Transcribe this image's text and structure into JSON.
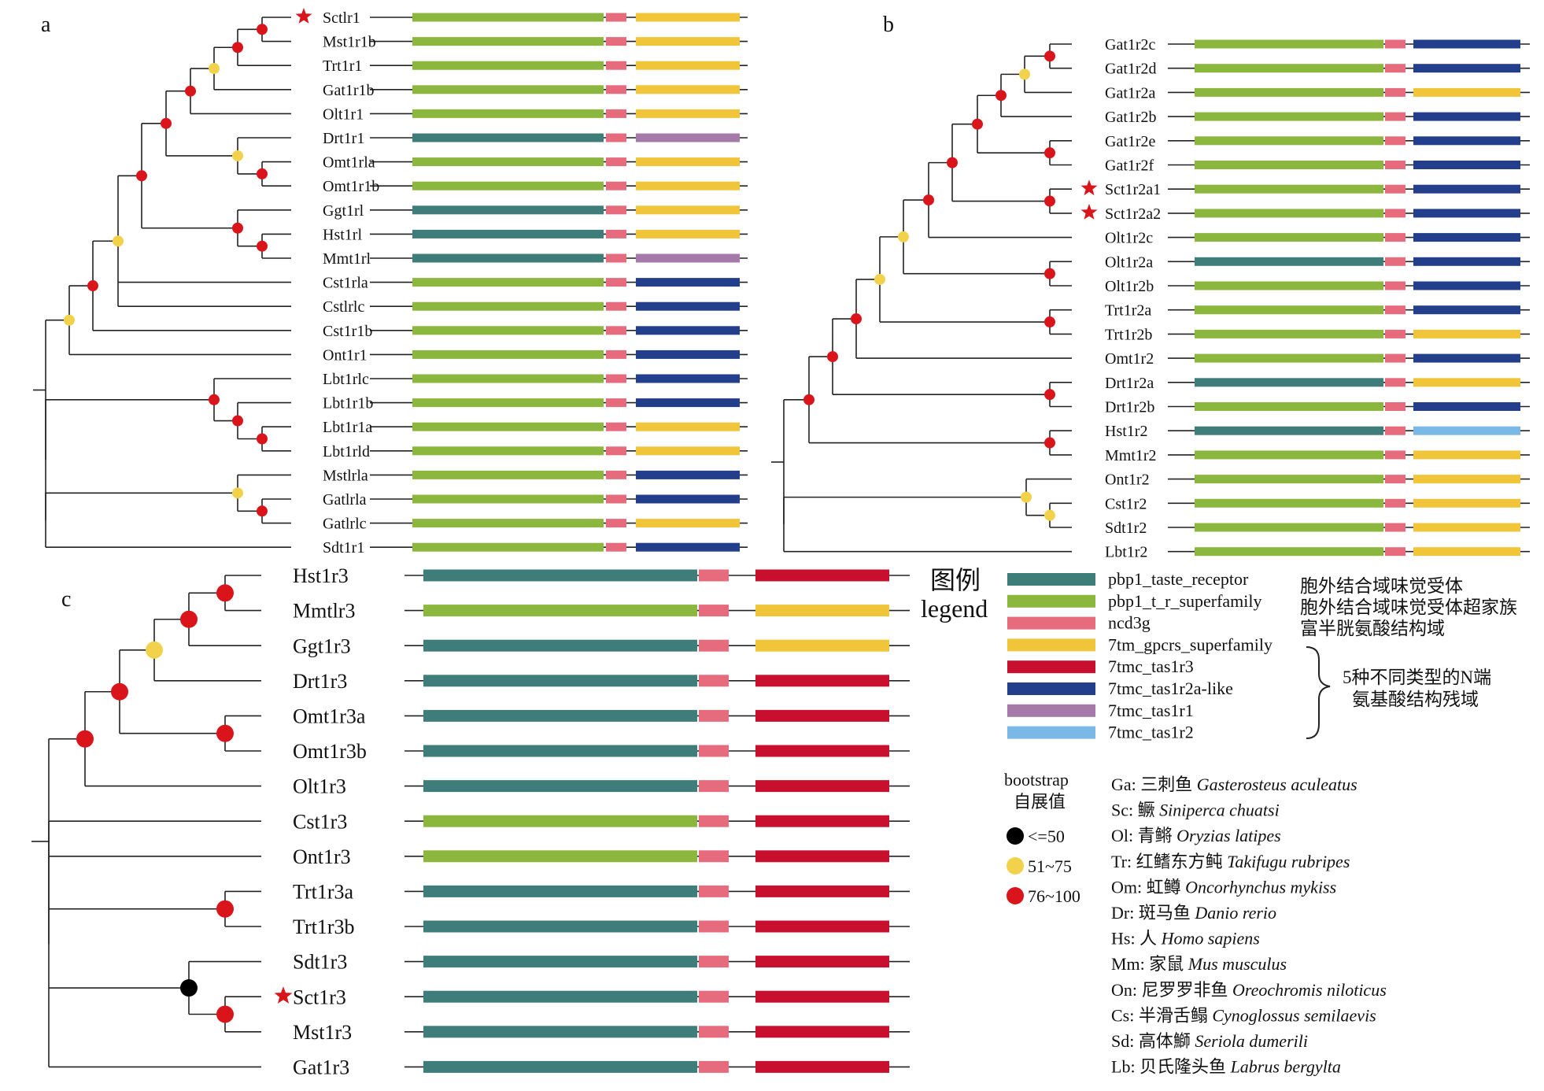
{
  "colors": {
    "teal": "#3f7d7b",
    "green": "#8cb73e",
    "pink": "#e56b7d",
    "yellow": "#f0c53a",
    "red": "#c8102e",
    "navy": "#233f8c",
    "purple": "#a57aa9",
    "lightblue": "#7ab8e6",
    "node_black": "#000000",
    "node_yellow": "#f2d24b",
    "node_red": "#d9141b",
    "star": "#d9141b"
  },
  "panel_a": {
    "letter": "a",
    "labels": [
      "Sctlr1",
      "Mst1r1b",
      "Trt1r1",
      "Gat1r1b",
      "Olt1r1",
      "Drt1r1",
      "Omt1rla",
      "Omt1r1b",
      "Ggt1rl",
      "Hst1rl",
      "Mmt1rl",
      "Cst1rla",
      "Cstlrlc",
      "Cst1r1b",
      "Ont1r1",
      "Lbt1rlc",
      "Lbt1r1b",
      "Lbt1r1a",
      "Lbt1rld",
      "Mstlrla",
      "Gatlrla",
      "Gatlrlc",
      "Sdt1r1"
    ],
    "first": [
      "green",
      "green",
      "green",
      "green",
      "green",
      "teal",
      "green",
      "green",
      "teal",
      "teal",
      "teal",
      "green",
      "green",
      "green",
      "green",
      "green",
      "green",
      "green",
      "green",
      "green",
      "green",
      "green",
      "green"
    ],
    "last": [
      "yellow",
      "yellow",
      "yellow",
      "yellow",
      "yellow",
      "purple",
      "yellow",
      "yellow",
      "yellow",
      "yellow",
      "purple",
      "navy",
      "navy",
      "navy",
      "navy",
      "navy",
      "navy",
      "yellow",
      "yellow",
      "navy",
      "navy",
      "yellow",
      "navy"
    ],
    "starred": [
      0
    ]
  },
  "panel_b": {
    "letter": "b",
    "labels": [
      "Gat1r2c",
      "Gat1r2d",
      "Gat1r2a",
      "Gat1r2b",
      "Gat1r2e",
      "Gat1r2f",
      "Sct1r2a1",
      "Sct1r2a2",
      "Olt1r2c",
      "Olt1r2a",
      "Olt1r2b",
      "Trt1r2a",
      "Trt1r2b",
      "Omt1r2",
      "Drt1r2a",
      "Drt1r2b",
      "Hst1r2",
      "Mmt1r2",
      "Ont1r2",
      "Cst1r2",
      "Sdt1r2",
      "Lbt1r2"
    ],
    "first": [
      "green",
      "green",
      "green",
      "green",
      "green",
      "green",
      "green",
      "green",
      "green",
      "teal",
      "green",
      "green",
      "green",
      "green",
      "teal",
      "green",
      "teal",
      "green",
      "green",
      "green",
      "green",
      "green"
    ],
    "last": [
      "navy",
      "navy",
      "yellow",
      "navy",
      "navy",
      "navy",
      "navy",
      "navy",
      "navy",
      "navy",
      "navy",
      "navy",
      "yellow",
      "navy",
      "yellow",
      "navy",
      "lightblue",
      "yellow",
      "yellow",
      "yellow",
      "yellow",
      "yellow"
    ],
    "starred": [
      6,
      7
    ]
  },
  "panel_c": {
    "letter": "c",
    "labels": [
      "Hst1r3",
      "Mmtlr3",
      "Ggt1r3",
      "Drt1r3",
      "Omt1r3a",
      "Omt1r3b",
      "Olt1r3",
      "Cst1r3",
      "Ont1r3",
      "Trt1r3a",
      "Trt1r3b",
      "Sdt1r3",
      "Sct1r3",
      "Mst1r3",
      "Gat1r3"
    ],
    "first": [
      "teal",
      "green",
      "teal",
      "teal",
      "teal",
      "teal",
      "teal",
      "green",
      "green",
      "teal",
      "teal",
      "teal",
      "teal",
      "teal",
      "teal"
    ],
    "last": [
      "red",
      "yellow",
      "yellow",
      "red",
      "red",
      "red",
      "red",
      "red",
      "red",
      "red",
      "red",
      "red",
      "red",
      "red",
      "red"
    ],
    "starred": [
      12
    ]
  },
  "legend": {
    "title_cn": "图例",
    "title_en": "legend",
    "domains": [
      {
        "color": "teal",
        "label": "pbp1_taste_receptor"
      },
      {
        "color": "green",
        "label": "pbp1_t_r_superfamily"
      },
      {
        "color": "pink",
        "label": "ncd3g"
      },
      {
        "color": "yellow",
        "label": "7tm_gpcrs_superfamily"
      },
      {
        "color": "red",
        "label": "7tmc_tas1r3"
      },
      {
        "color": "navy",
        "label": "7tmc_tas1r2a-like"
      },
      {
        "color": "purple",
        "label": "7tmc_tas1r1"
      },
      {
        "color": "lightblue",
        "label": "7tmc_tas1r2"
      }
    ],
    "desc": [
      "胞外结合域味觉受体",
      "胞外结合域味觉受体超家族",
      "富半胱氨酸结构域"
    ],
    "bracket_text": [
      "5种不同类型的N端",
      "氨基酸结构残域"
    ],
    "bootstrap_title": [
      "bootstrap",
      "自展值"
    ],
    "bootstrap": [
      {
        "color": "node_black",
        "label": "<=50"
      },
      {
        "color": "node_yellow",
        "label": "51~75"
      },
      {
        "color": "node_red",
        "label": "76~100"
      }
    ]
  },
  "species": [
    {
      "code": "Ga:",
      "cn": "三刺鱼",
      "latin": "Gasterosteus aculeatus"
    },
    {
      "code": "Sc:",
      "cn": "鳜",
      "latin": "Siniperca chuatsi"
    },
    {
      "code": "Ol:",
      "cn": "青鳉",
      "latin": "Oryzias latipes"
    },
    {
      "code": "Tr:",
      "cn": "红鳍东方鲀",
      "latin": "Takifugu rubripes"
    },
    {
      "code": "Om:",
      "cn": "虹鳟",
      "latin": "Oncorhynchus mykiss"
    },
    {
      "code": "Dr:",
      "cn": "斑马鱼",
      "latin": "Danio rerio"
    },
    {
      "code": "Hs:",
      "cn": "人",
      "latin": "Homo sapiens"
    },
    {
      "code": "Mm:",
      "cn": "家鼠",
      "latin": "Mus musculus"
    },
    {
      "code": "On:",
      "cn": "尼罗罗非鱼",
      "latin": "Oreochromis niloticus"
    },
    {
      "code": "Cs:",
      "cn": "半滑舌鳎",
      "latin": "Cynoglossus semilaevis"
    },
    {
      "code": "Sd:",
      "cn": "高体鰤",
      "latin": "Seriola dumerili"
    },
    {
      "code": "Lb:",
      "cn": "贝氏隆头鱼",
      "latin": "Labrus bergylta"
    }
  ]
}
